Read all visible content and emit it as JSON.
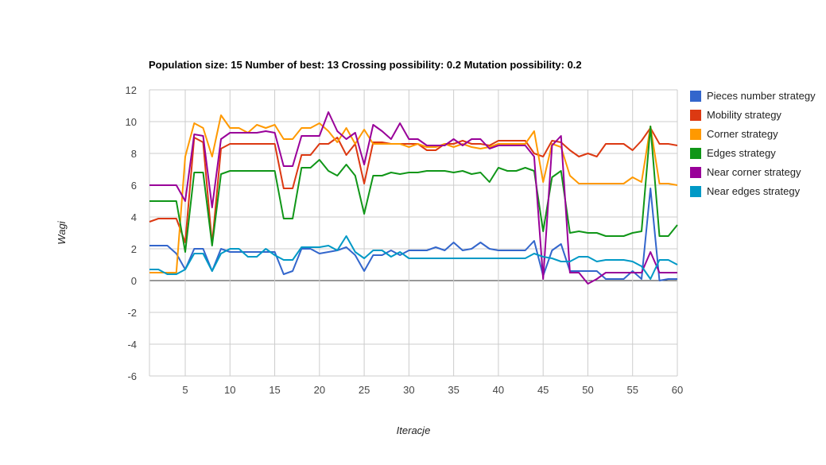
{
  "chart_data": {
    "type": "line",
    "title": "Population size: 15 Number of best: 13 Crossing possibility: 0.2 Mutation possibility: 0.2",
    "xlabel": "Iteracje",
    "ylabel": "Wagi",
    "xlim": [
      1,
      60
    ],
    "ylim": [
      -6,
      12
    ],
    "x_ticks": [
      5,
      10,
      15,
      20,
      25,
      30,
      35,
      40,
      45,
      50,
      55,
      60
    ],
    "y_ticks": [
      12,
      10,
      8,
      6,
      4,
      2,
      0,
      -2,
      -4,
      -6
    ],
    "grid": true,
    "legend_position": "right",
    "series": [
      {
        "name": "Pieces number strategy",
        "color": "#3366cc",
        "values": [
          2.2,
          2.2,
          2.2,
          1.7,
          0.7,
          2.0,
          2.0,
          0.6,
          2.0,
          1.8,
          1.8,
          1.8,
          1.8,
          1.8,
          1.8,
          0.4,
          0.6,
          2.0,
          2.0,
          1.7,
          1.8,
          1.9,
          2.1,
          1.6,
          0.6,
          1.6,
          1.6,
          1.9,
          1.6,
          1.9,
          1.9,
          1.9,
          2.1,
          1.9,
          2.4,
          1.9,
          2.0,
          2.4,
          2.0,
          1.9,
          1.9,
          1.9,
          1.9,
          2.5,
          0.3,
          1.9,
          2.3,
          0.6,
          0.6,
          0.6,
          0.6,
          0.1,
          0.1,
          0.1,
          0.6,
          0.1,
          5.8,
          0.0,
          0.1,
          0.1
        ]
      },
      {
        "name": "Mobility strategy",
        "color": "#dc3912",
        "values": [
          3.7,
          3.9,
          3.9,
          3.9,
          2.4,
          9.0,
          8.7,
          2.3,
          8.3,
          8.6,
          8.6,
          8.6,
          8.6,
          8.6,
          8.6,
          5.8,
          5.8,
          7.9,
          7.9,
          8.6,
          8.6,
          9.0,
          7.9,
          8.6,
          6.1,
          8.7,
          8.7,
          8.6,
          8.6,
          8.6,
          8.6,
          8.2,
          8.2,
          8.6,
          8.6,
          8.8,
          8.6,
          8.6,
          8.5,
          8.8,
          8.8,
          8.8,
          8.8,
          8.0,
          7.8,
          8.8,
          8.7,
          8.2,
          7.8,
          8.0,
          7.8,
          8.6,
          8.6,
          8.6,
          8.2,
          8.8,
          9.6,
          8.6,
          8.6,
          8.5
        ]
      },
      {
        "name": "Corner strategy",
        "color": "#ff9900",
        "values": [
          0.5,
          0.5,
          0.5,
          0.5,
          7.8,
          9.9,
          9.6,
          7.8,
          10.4,
          9.6,
          9.6,
          9.3,
          9.8,
          9.6,
          9.8,
          8.9,
          8.9,
          9.6,
          9.6,
          9.9,
          9.4,
          8.7,
          9.6,
          8.6,
          9.5,
          8.6,
          8.6,
          8.6,
          8.6,
          8.4,
          8.6,
          8.4,
          8.4,
          8.6,
          8.4,
          8.6,
          8.4,
          8.3,
          8.4,
          8.6,
          8.6,
          8.6,
          8.6,
          9.4,
          6.2,
          8.6,
          8.4,
          6.6,
          6.1,
          6.1,
          6.1,
          6.1,
          6.1,
          6.1,
          6.5,
          6.2,
          9.7,
          6.1,
          6.1,
          6.0
        ]
      },
      {
        "name": "Edges strategy",
        "color": "#109618",
        "values": [
          5.0,
          5.0,
          5.0,
          5.0,
          1.8,
          6.8,
          6.8,
          2.2,
          6.7,
          6.9,
          6.9,
          6.9,
          6.9,
          6.9,
          6.9,
          3.9,
          3.9,
          7.1,
          7.1,
          7.6,
          6.9,
          6.6,
          7.3,
          6.6,
          4.2,
          6.6,
          6.6,
          6.8,
          6.7,
          6.8,
          6.8,
          6.9,
          6.9,
          6.9,
          6.8,
          6.9,
          6.7,
          6.8,
          6.2,
          7.1,
          6.9,
          6.9,
          7.1,
          6.9,
          3.1,
          6.5,
          6.9,
          3.0,
          3.1,
          3.0,
          3.0,
          2.8,
          2.8,
          2.8,
          3.0,
          3.1,
          9.7,
          2.8,
          2.8,
          3.5
        ]
      },
      {
        "name": "Near corner strategy",
        "color": "#990099",
        "values": [
          6.0,
          6.0,
          6.0,
          6.0,
          5.0,
          9.2,
          9.1,
          4.6,
          8.9,
          9.3,
          9.3,
          9.3,
          9.3,
          9.4,
          9.3,
          7.2,
          7.2,
          9.1,
          9.1,
          9.1,
          10.6,
          9.4,
          8.9,
          9.3,
          7.3,
          9.8,
          9.4,
          8.9,
          9.9,
          8.9,
          8.9,
          8.5,
          8.5,
          8.5,
          8.9,
          8.5,
          8.9,
          8.9,
          8.3,
          8.5,
          8.5,
          8.5,
          8.5,
          7.8,
          0.1,
          8.5,
          9.1,
          0.5,
          0.5,
          -0.2,
          0.1,
          0.5,
          0.5,
          0.5,
          0.5,
          0.5,
          1.8,
          0.5,
          0.5,
          0.5
        ]
      },
      {
        "name": "Near edges strategy",
        "color": "#0099c6",
        "values": [
          0.7,
          0.7,
          0.4,
          0.4,
          0.7,
          1.7,
          1.7,
          0.6,
          1.7,
          2.0,
          2.0,
          1.5,
          1.5,
          2.0,
          1.6,
          1.3,
          1.3,
          2.1,
          2.1,
          2.1,
          2.2,
          1.9,
          2.8,
          1.8,
          1.4,
          1.9,
          1.9,
          1.5,
          1.8,
          1.4,
          1.4,
          1.4,
          1.4,
          1.4,
          1.4,
          1.4,
          1.4,
          1.4,
          1.4,
          1.4,
          1.4,
          1.4,
          1.4,
          1.7,
          1.5,
          1.4,
          1.2,
          1.2,
          1.5,
          1.5,
          1.2,
          1.3,
          1.3,
          1.3,
          1.2,
          0.9,
          0.1,
          1.3,
          1.3,
          1.0
        ]
      }
    ]
  }
}
